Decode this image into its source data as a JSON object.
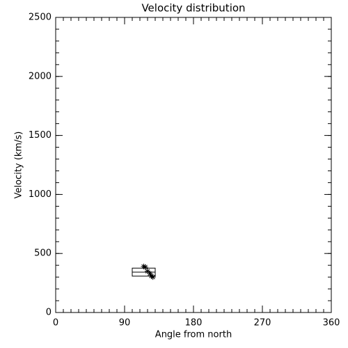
{
  "chart_data": {
    "type": "scatter",
    "title": "Velocity distribution",
    "x_label": "Angle from north",
    "y_label": "Velocity (km/s)",
    "xlim": [
      0,
      360
    ],
    "xticks": [
      0,
      90,
      180,
      270,
      360
    ],
    "x_minor_step": 10,
    "ylim": [
      0,
      2500
    ],
    "yticks": [
      0,
      500,
      1000,
      1500,
      2000,
      2500
    ],
    "y_minor_step": 100,
    "color": "#000000",
    "marker": "asterisk",
    "x": [
      115,
      117,
      120,
      123,
      125,
      127
    ],
    "values": [
      390,
      385,
      350,
      330,
      310,
      300
    ],
    "box": {
      "xlim": [
        100,
        130
      ],
      "q1": 308,
      "median": 342,
      "q3": 376
    }
  }
}
